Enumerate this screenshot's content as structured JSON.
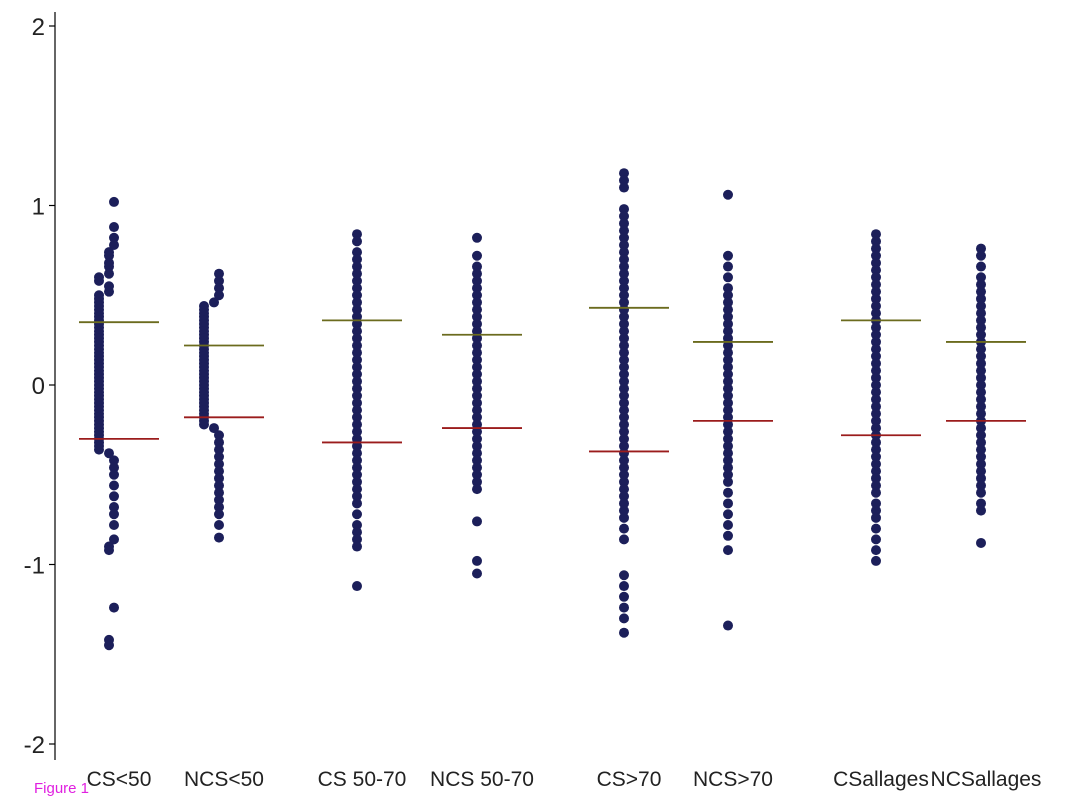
{
  "figure_label": "Figure 1",
  "chart_data": {
    "type": "scatter",
    "subtype": "dot-strip (beeswarm) plot",
    "title": "",
    "xlabel": "",
    "ylabel": "",
    "ylim": [
      -2.1,
      2.1
    ],
    "yticks": [
      2,
      1,
      0,
      -1,
      -2
    ],
    "grid": false,
    "legend": "none",
    "colors": {
      "dots": "#1c1f5a",
      "upper_line": "#6b6b1e",
      "lower_line": "#9b1c1c",
      "axis": "#000000"
    },
    "categories": [
      "CS<50",
      "NCS<50",
      "CS 50-70",
      "NCS 50-70",
      "CS>70",
      "NCS>70",
      "CSallages",
      "NCSallages"
    ],
    "series": [
      {
        "category": "CS<50",
        "upper_line": 0.35,
        "lower_line": -0.3,
        "values": [
          1.02,
          0.88,
          0.82,
          0.78,
          0.74,
          0.72,
          0.68,
          0.66,
          0.62,
          0.6,
          0.58,
          0.55,
          0.52,
          0.5,
          0.48,
          0.46,
          0.44,
          0.42,
          0.4,
          0.38,
          0.36,
          0.34,
          0.32,
          0.3,
          0.28,
          0.26,
          0.24,
          0.22,
          0.2,
          0.18,
          0.16,
          0.14,
          0.12,
          0.1,
          0.08,
          0.06,
          0.04,
          0.02,
          0,
          -0.02,
          -0.04,
          -0.06,
          -0.08,
          -0.1,
          -0.12,
          -0.14,
          -0.16,
          -0.18,
          -0.2,
          -0.22,
          -0.24,
          -0.26,
          -0.28,
          -0.3,
          -0.32,
          -0.34,
          -0.36,
          -0.38,
          -0.42,
          -0.46,
          -0.5,
          -0.56,
          -0.62,
          -0.68,
          -0.72,
          -0.78,
          -0.86,
          -0.9,
          -0.92,
          -1.24,
          -1.42,
          -1.45
        ]
      },
      {
        "category": "NCS<50",
        "upper_line": 0.22,
        "lower_line": -0.18,
        "values": [
          0.62,
          0.58,
          0.54,
          0.5,
          0.46,
          0.44,
          0.42,
          0.4,
          0.38,
          0.36,
          0.34,
          0.32,
          0.3,
          0.28,
          0.26,
          0.24,
          0.22,
          0.2,
          0.18,
          0.16,
          0.14,
          0.12,
          0.1,
          0.08,
          0.06,
          0.04,
          0.02,
          0,
          -0.02,
          -0.04,
          -0.06,
          -0.08,
          -0.1,
          -0.12,
          -0.14,
          -0.16,
          -0.18,
          -0.2,
          -0.22,
          -0.24,
          -0.28,
          -0.32,
          -0.36,
          -0.4,
          -0.44,
          -0.48,
          -0.52,
          -0.56,
          -0.6,
          -0.64,
          -0.68,
          -0.72,
          -0.78,
          -0.85
        ]
      },
      {
        "category": "CS 50-70",
        "upper_line": 0.36,
        "lower_line": -0.32,
        "values": [
          0.84,
          0.8,
          0.74,
          0.7,
          0.66,
          0.62,
          0.58,
          0.54,
          0.5,
          0.46,
          0.42,
          0.38,
          0.34,
          0.3,
          0.26,
          0.22,
          0.18,
          0.14,
          0.1,
          0.06,
          0.02,
          -0.02,
          -0.06,
          -0.1,
          -0.14,
          -0.18,
          -0.22,
          -0.26,
          -0.3,
          -0.34,
          -0.38,
          -0.42,
          -0.46,
          -0.5,
          -0.54,
          -0.58,
          -0.62,
          -0.66,
          -0.72,
          -0.78,
          -0.82,
          -0.86,
          -0.9,
          -1.12
        ]
      },
      {
        "category": "NCS 50-70",
        "upper_line": 0.28,
        "lower_line": -0.24,
        "values": [
          0.82,
          0.72,
          0.66,
          0.62,
          0.58,
          0.54,
          0.5,
          0.46,
          0.42,
          0.38,
          0.34,
          0.3,
          0.26,
          0.22,
          0.18,
          0.14,
          0.1,
          0.06,
          0.02,
          -0.02,
          -0.06,
          -0.1,
          -0.14,
          -0.18,
          -0.22,
          -0.26,
          -0.3,
          -0.34,
          -0.38,
          -0.42,
          -0.46,
          -0.5,
          -0.54,
          -0.58,
          -0.76,
          -0.98,
          -1.05
        ]
      },
      {
        "category": "CS>70",
        "upper_line": 0.43,
        "lower_line": -0.37,
        "values": [
          1.18,
          1.14,
          1.1,
          0.98,
          0.94,
          0.9,
          0.86,
          0.82,
          0.78,
          0.74,
          0.7,
          0.66,
          0.62,
          0.58,
          0.54,
          0.5,
          0.46,
          0.42,
          0.38,
          0.34,
          0.3,
          0.26,
          0.22,
          0.18,
          0.14,
          0.1,
          0.06,
          0.02,
          -0.02,
          -0.06,
          -0.1,
          -0.14,
          -0.18,
          -0.22,
          -0.26,
          -0.3,
          -0.34,
          -0.38,
          -0.42,
          -0.46,
          -0.5,
          -0.54,
          -0.58,
          -0.62,
          -0.66,
          -0.7,
          -0.74,
          -0.8,
          -0.86,
          -1.06,
          -1.12,
          -1.18,
          -1.24,
          -1.3,
          -1.38
        ]
      },
      {
        "category": "NCS>70",
        "upper_line": 0.24,
        "lower_line": -0.2,
        "values": [
          1.06,
          0.72,
          0.66,
          0.6,
          0.54,
          0.5,
          0.46,
          0.42,
          0.38,
          0.34,
          0.3,
          0.26,
          0.22,
          0.18,
          0.14,
          0.1,
          0.06,
          0.02,
          -0.02,
          -0.06,
          -0.1,
          -0.14,
          -0.18,
          -0.22,
          -0.26,
          -0.3,
          -0.34,
          -0.38,
          -0.42,
          -0.46,
          -0.5,
          -0.54,
          -0.6,
          -0.66,
          -0.72,
          -0.78,
          -0.84,
          -0.92,
          -1.34
        ]
      },
      {
        "category": "CSallages",
        "upper_line": 0.36,
        "lower_line": -0.28,
        "values": [
          0.84,
          0.8,
          0.76,
          0.72,
          0.68,
          0.64,
          0.6,
          0.56,
          0.52,
          0.48,
          0.44,
          0.4,
          0.36,
          0.32,
          0.28,
          0.24,
          0.2,
          0.16,
          0.12,
          0.08,
          0.04,
          0,
          -0.04,
          -0.08,
          -0.12,
          -0.16,
          -0.2,
          -0.24,
          -0.28,
          -0.32,
          -0.36,
          -0.4,
          -0.44,
          -0.48,
          -0.52,
          -0.56,
          -0.6,
          -0.66,
          -0.7,
          -0.74,
          -0.8,
          -0.86,
          -0.92,
          -0.98
        ]
      },
      {
        "category": "NCSallages",
        "upper_line": 0.24,
        "lower_line": -0.2,
        "values": [
          0.76,
          0.72,
          0.66,
          0.6,
          0.56,
          0.52,
          0.48,
          0.44,
          0.4,
          0.36,
          0.32,
          0.28,
          0.24,
          0.2,
          0.16,
          0.12,
          0.08,
          0.04,
          0,
          -0.04,
          -0.08,
          -0.12,
          -0.16,
          -0.2,
          -0.24,
          -0.28,
          -0.32,
          -0.36,
          -0.4,
          -0.44,
          -0.48,
          -0.52,
          -0.56,
          -0.6,
          -0.66,
          -0.7,
          -0.88
        ]
      }
    ]
  }
}
